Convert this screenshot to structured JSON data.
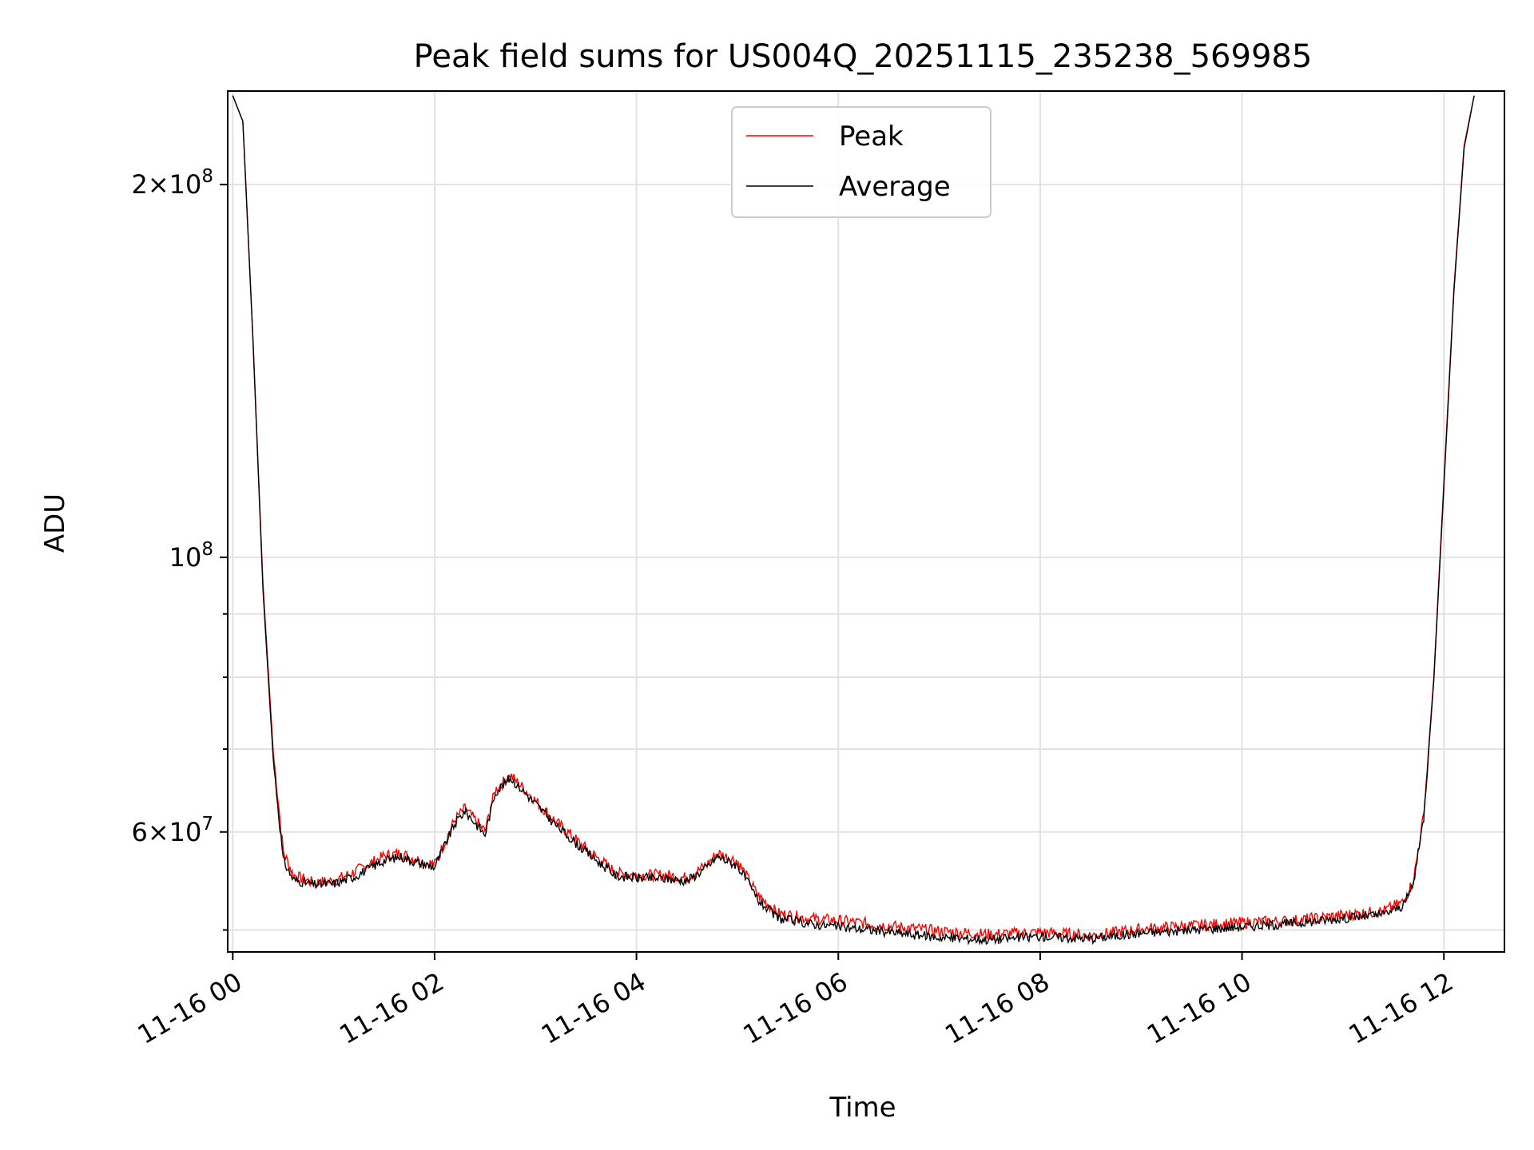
{
  "chart_data": {
    "type": "line",
    "title": "Peak field sums for US004Q_20251115_235238_569985",
    "xlabel": "Time",
    "ylabel": "ADU",
    "yscale": "log",
    "ylim": [
      48000000,
      238000000
    ],
    "xlim_hours": [
      -0.05,
      12.6
    ],
    "grid": true,
    "legend_position": "top-center",
    "x_tick_labels": [
      "11-16 00",
      "11-16 02",
      "11-16 04",
      "11-16 06",
      "11-16 08",
      "11-16 10",
      "11-16 12"
    ],
    "x_tick_hours": [
      0,
      2,
      4,
      6,
      8,
      10,
      12
    ],
    "y_major_ticks": [
      {
        "value": 200000000,
        "mantissa": "2",
        "exponent": "8"
      },
      {
        "value": 100000000,
        "mantissa": "",
        "exponent": "8"
      },
      {
        "value": 60000000,
        "mantissa": "6",
        "exponent": "7"
      }
    ],
    "y_minor_ticks": [
      50000000,
      70000000,
      80000000,
      90000000
    ],
    "series": [
      {
        "name": "Peak",
        "color": "#ff0000"
      },
      {
        "name": "Average",
        "color": "#000000"
      }
    ],
    "x": [
      "11-16 00:00",
      "11-16 00:06",
      "11-16 00:12",
      "11-16 00:18",
      "11-16 00:24",
      "11-16 00:30",
      "11-16 00:36",
      "11-16 00:48",
      "11-16 01:00",
      "11-16 01:12",
      "11-16 01:30",
      "11-16 01:40",
      "11-16 01:48",
      "11-16 02:00",
      "11-16 02:12",
      "11-16 02:18",
      "11-16 02:30",
      "11-16 02:36",
      "11-16 02:45",
      "11-16 02:54",
      "11-16 03:12",
      "11-16 03:30",
      "11-16 03:48",
      "11-16 04:00",
      "11-16 04:18",
      "11-16 04:30",
      "11-16 04:42",
      "11-16 04:48",
      "11-16 05:00",
      "11-16 05:12",
      "11-16 05:24",
      "11-16 05:42",
      "11-16 06:00",
      "11-16 06:30",
      "11-16 07:00",
      "11-16 07:30",
      "11-16 08:00",
      "11-16 08:30",
      "11-16 09:00",
      "11-16 09:30",
      "11-16 10:00",
      "11-16 10:30",
      "11-16 11:00",
      "11-16 11:24",
      "11-16 11:36",
      "11-16 11:42",
      "11-16 11:48",
      "11-16 11:54",
      "11-16 12:00",
      "11-16 12:06",
      "11-16 12:12",
      "11-16 12:18"
    ],
    "peak_values": [
      236000000,
      225000000,
      150000000,
      95000000,
      70000000,
      58000000,
      55500000,
      54700000,
      54900000,
      55800000,
      57500000,
      57800000,
      57200000,
      56600000,
      61500000,
      62800000,
      60200000,
      65000000,
      66800000,
      65000000,
      61300000,
      58300000,
      55700000,
      55500000,
      55500000,
      55200000,
      56600000,
      57800000,
      57000000,
      53500000,
      51700000,
      51200000,
      51000000,
      50500000,
      50000000,
      49700000,
      49900000,
      49600000,
      50200000,
      50500000,
      50800000,
      51000000,
      51500000,
      51900000,
      52800000,
      55000000,
      62000000,
      80000000,
      115000000,
      165000000,
      215000000,
      236000000
    ],
    "average_values": [
      236000000,
      225000000,
      150000000,
      94000000,
      69000000,
      57000000,
      55000000,
      54500000,
      54600000,
      55300000,
      57000000,
      57400000,
      56900000,
      56300000,
      61000000,
      62500000,
      59800000,
      64700000,
      66500000,
      64600000,
      60900000,
      57900000,
      55400000,
      55200000,
      55100000,
      54900000,
      56300000,
      57400000,
      56500000,
      53000000,
      51200000,
      50700000,
      50400000,
      49900000,
      49400000,
      49200000,
      49500000,
      49300000,
      49800000,
      50100000,
      50400000,
      50700000,
      51200000,
      51600000,
      52400000,
      54700000,
      61700000,
      79500000,
      114000000,
      164000000,
      214000000,
      236000000
    ]
  }
}
